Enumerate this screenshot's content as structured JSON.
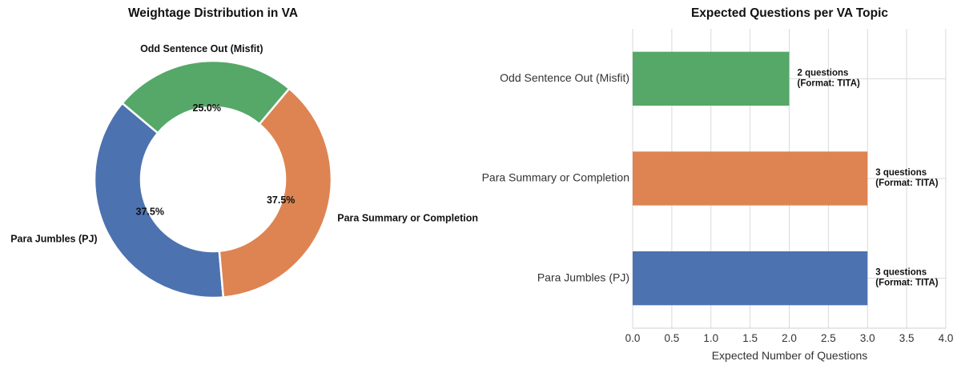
{
  "chart_data": [
    {
      "type": "pie",
      "variant": "donut",
      "title": "Weightage Distribution in VA",
      "slices": [
        {
          "label": "Para Jumbles (PJ)",
          "value": 37.5,
          "pct_label": "37.5%",
          "color": "#4c72b0"
        },
        {
          "label": "Para Summary or Completion",
          "value": 37.5,
          "pct_label": "37.5%",
          "color": "#dd8452"
        },
        {
          "label": "Odd Sentence Out (Misfit)",
          "value": 25.0,
          "pct_label": "25.0%",
          "color": "#55a868"
        }
      ],
      "start_angle_deg": 140,
      "direction": "counterclockwise"
    },
    {
      "type": "bar",
      "orientation": "horizontal",
      "title": "Expected Questions per VA Topic",
      "categories": [
        "Para Jumbles (PJ)",
        "Para Summary or Completion",
        "Odd Sentence Out (Misfit)"
      ],
      "values": [
        3,
        3,
        2
      ],
      "colors": [
        "#4c72b0",
        "#dd8452",
        "#55a868"
      ],
      "data_labels": [
        [
          "3 questions",
          "(Format: TITA)"
        ],
        [
          "3 questions",
          "(Format: TITA)"
        ],
        [
          "2 questions",
          "(Format: TITA)"
        ]
      ],
      "xlabel": "Expected Number of Questions",
      "ylabel": "",
      "xlim": [
        0,
        4
      ],
      "xticks": [
        "0.0",
        "0.5",
        "1.0",
        "1.5",
        "2.0",
        "2.5",
        "3.0",
        "3.5",
        "4.0"
      ],
      "grid": true
    }
  ]
}
